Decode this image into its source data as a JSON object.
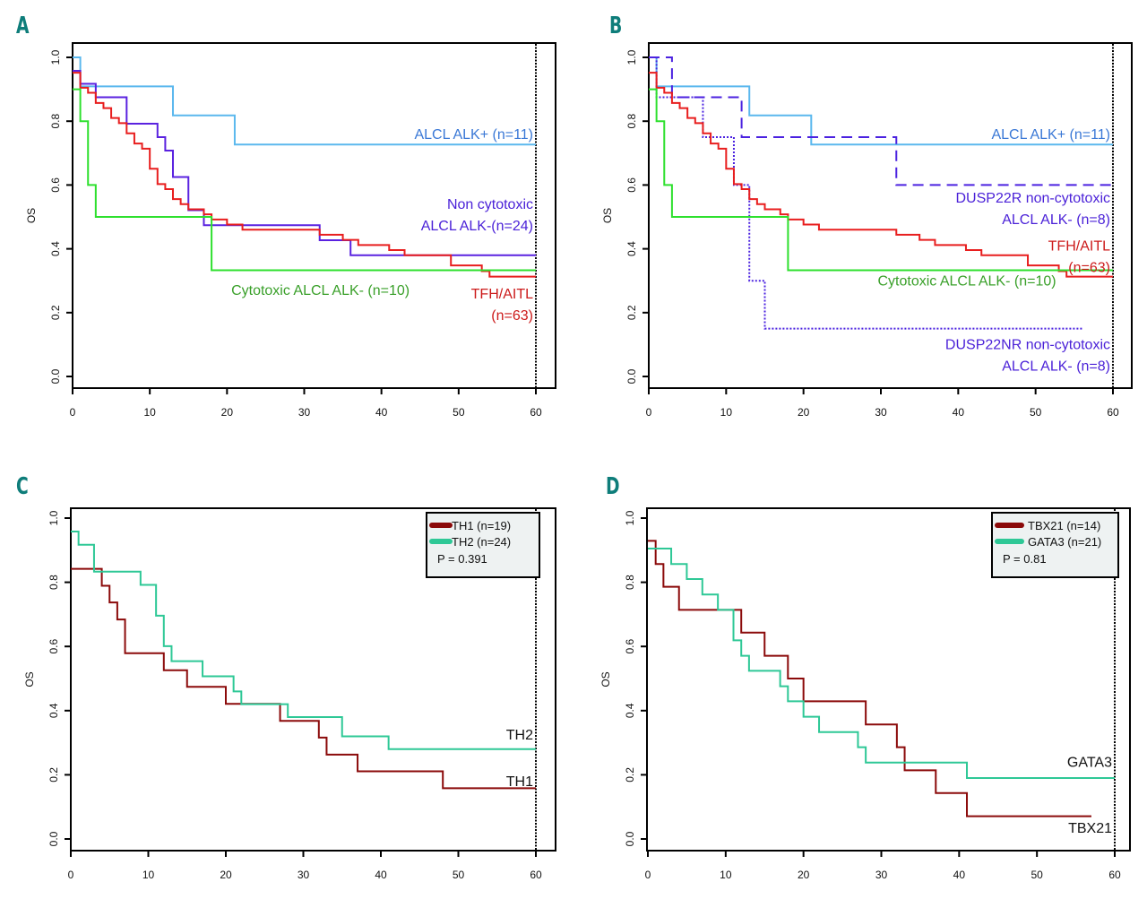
{
  "chart_data": [
    {
      "id": "A",
      "type": "line",
      "panel_label": "A",
      "xlabel": "",
      "ylabel": "OS",
      "xlim": [
        0,
        60
      ],
      "ylim": [
        0,
        1
      ],
      "xticks": [
        "0",
        "10",
        "20",
        "30",
        "40",
        "50",
        "60"
      ],
      "yticks": [
        "0.0",
        "0.2",
        "0.4",
        "0.6",
        "0.8",
        "1.0"
      ],
      "censor_line_x": 60,
      "legend": null,
      "series": [
        {
          "name": "ALCL ALK+ (n=11)",
          "color": "#5bb8ee",
          "style": "solid",
          "x": [
            0,
            1,
            13,
            21,
            60
          ],
          "y": [
            1.0,
            0.909,
            0.818,
            0.727,
            0.727
          ]
        },
        {
          "name": "Non cytotoxic ALCL ALK-(n=24)",
          "color": "#5a22e0",
          "style": "solid",
          "x": [
            0,
            1,
            3,
            7,
            11,
            12,
            13,
            15,
            17,
            32,
            36,
            60
          ],
          "y": [
            0.958,
            0.917,
            0.875,
            0.792,
            0.75,
            0.708,
            0.625,
            0.521,
            0.474,
            0.427,
            0.38,
            0.38
          ]
        },
        {
          "name": "TFH/AITL (n=63)",
          "color": "#e81e1e",
          "style": "solid",
          "x": [
            0,
            1,
            2,
            3,
            4,
            5,
            6,
            7,
            8,
            9,
            10,
            11,
            12,
            13,
            14,
            15,
            17,
            18,
            20,
            22,
            32,
            35,
            37,
            41,
            43,
            49,
            53,
            54,
            60
          ],
          "y": [
            0.952,
            0.905,
            0.889,
            0.857,
            0.841,
            0.81,
            0.794,
            0.762,
            0.73,
            0.714,
            0.651,
            0.603,
            0.587,
            0.556,
            0.54,
            0.524,
            0.508,
            0.492,
            0.476,
            0.46,
            0.444,
            0.428,
            0.412,
            0.396,
            0.38,
            0.348,
            0.33,
            0.313,
            0.313
          ]
        },
        {
          "name": "Cytotoxic ALCL ALK- (n=10)",
          "color": "#2ee02e",
          "style": "solid",
          "x": [
            0,
            1,
            2,
            3,
            18,
            60
          ],
          "y": [
            0.9,
            0.8,
            0.6,
            0.5,
            0.333,
            0.333
          ]
        }
      ],
      "annotations": [
        {
          "lines": [
            "ALCL ALK+ (n=11)"
          ],
          "color": "#3a78d6",
          "x": 60,
          "y": 0.745
        },
        {
          "lines": [
            "Non cytotoxic",
            "ALCL ALK-(n=24)"
          ],
          "color": "#4b22d8",
          "x": 60,
          "y": 0.525
        },
        {
          "lines": [
            "Cytotoxic ALCL ALK- (n=10)"
          ],
          "color": "#3aa02a",
          "x": 44,
          "y": 0.255
        },
        {
          "lines": [
            "TFH/AITL",
            "(n=63)"
          ],
          "color": "#cc1a1a",
          "x": 60,
          "y": 0.245
        }
      ]
    },
    {
      "id": "B",
      "type": "line",
      "panel_label": "B",
      "xlabel": "",
      "ylabel": "OS",
      "xlim": [
        0,
        60
      ],
      "ylim": [
        0,
        1
      ],
      "xticks": [
        "0",
        "10",
        "20",
        "30",
        "40",
        "50",
        "60"
      ],
      "yticks": [
        "0.0",
        "0.2",
        "0.4",
        "0.6",
        "0.8",
        "1.0"
      ],
      "censor_line_x": 60,
      "legend": null,
      "series": [
        {
          "name": "ALCL ALK+ (n=11)",
          "color": "#5bb8ee",
          "style": "solid",
          "x": [
            0,
            1,
            13,
            21,
            60
          ],
          "y": [
            1.0,
            0.909,
            0.818,
            0.727,
            0.727
          ]
        },
        {
          "name": "DUSP22R non-cytotoxic ALCL ALK- (n=8)",
          "color": "#4b22e0",
          "style": "dashed",
          "x": [
            0,
            3,
            12,
            32,
            60
          ],
          "y": [
            1.0,
            0.875,
            0.75,
            0.6,
            0.6
          ]
        },
        {
          "name": "DUSP22NR non-cytotoxic ALCL ALK- (n=8)",
          "color": "#4b22e0",
          "style": "dotted",
          "x": [
            0,
            1,
            7,
            11,
            13,
            15,
            56
          ],
          "y": [
            1.0,
            0.875,
            0.75,
            0.6,
            0.3,
            0.15,
            0.15
          ]
        },
        {
          "name": "TFH/AITL (n=63)",
          "color": "#e81e1e",
          "style": "solid",
          "x": [
            0,
            1,
            2,
            3,
            4,
            5,
            6,
            7,
            8,
            9,
            10,
            11,
            12,
            13,
            14,
            15,
            17,
            18,
            20,
            22,
            32,
            35,
            37,
            41,
            43,
            49,
            53,
            54,
            60
          ],
          "y": [
            0.952,
            0.905,
            0.889,
            0.857,
            0.841,
            0.81,
            0.794,
            0.762,
            0.73,
            0.714,
            0.651,
            0.603,
            0.587,
            0.556,
            0.54,
            0.524,
            0.508,
            0.492,
            0.476,
            0.46,
            0.444,
            0.428,
            0.412,
            0.396,
            0.38,
            0.348,
            0.33,
            0.313,
            0.313
          ]
        },
        {
          "name": "Cytotoxic ALCL ALK- (n=10)",
          "color": "#2ee02e",
          "style": "solid",
          "x": [
            0,
            1,
            2,
            3,
            18,
            60
          ],
          "y": [
            0.9,
            0.8,
            0.6,
            0.5,
            0.333,
            0.333
          ]
        }
      ],
      "annotations": [
        {
          "lines": [
            "ALCL ALK+ (n=11)"
          ],
          "color": "#3a78d6",
          "x": 60,
          "y": 0.745
        },
        {
          "lines": [
            "DUSP22R non-cytotoxic",
            "ALCL ALK- (n=8)"
          ],
          "color": "#4b22d8",
          "x": 60,
          "y": 0.545
        },
        {
          "lines": [
            "TFH/AITL",
            "(n=63)"
          ],
          "color": "#cc1a1a",
          "x": 60,
          "y": 0.395
        },
        {
          "lines": [
            "Cytotoxic  ALCL ALK- (n=10)"
          ],
          "color": "#3aa02a",
          "x": 53,
          "y": 0.285
        },
        {
          "lines": [
            "DUSP22NR non-cytotoxic",
            "ALCL ALK- (n=8)"
          ],
          "color": "#4b22d8",
          "x": 60,
          "y": 0.085
        }
      ]
    },
    {
      "id": "C",
      "type": "line",
      "panel_label": "C",
      "xlabel": "",
      "ylabel": "OS",
      "xlim": [
        0,
        60
      ],
      "ylim": [
        0,
        1
      ],
      "xticks": [
        "0",
        "10",
        "20",
        "30",
        "40",
        "50",
        "60"
      ],
      "yticks": [
        "0.0",
        "0.2",
        "0.4",
        "0.6",
        "0.8",
        "1.0"
      ],
      "censor_line_x": 60,
      "legend": {
        "position": "top-right",
        "entries": [
          {
            "label": "TH1 (n=19)",
            "color": "#8b0a0a"
          },
          {
            "label": "TH2 (n=24)",
            "color": "#2ec896"
          }
        ],
        "pvalue": "P = 0.391"
      },
      "series": [
        {
          "name": "TH1 (n=19)",
          "color": "#8b0a0a",
          "style": "solid",
          "x": [
            0,
            4,
            5,
            6,
            7,
            12,
            15,
            20,
            27,
            32,
            33,
            37,
            48,
            60
          ],
          "y": [
            0.842,
            0.789,
            0.737,
            0.684,
            0.579,
            0.526,
            0.474,
            0.421,
            0.368,
            0.316,
            0.263,
            0.211,
            0.158,
            0.158
          ]
        },
        {
          "name": "TH2 (n=24)",
          "color": "#2ec896",
          "style": "solid",
          "x": [
            0,
            1,
            3,
            9,
            11,
            12,
            13,
            17,
            21,
            22,
            28,
            35,
            41,
            60
          ],
          "y": [
            0.958,
            0.917,
            0.833,
            0.792,
            0.696,
            0.601,
            0.554,
            0.507,
            0.46,
            0.42,
            0.38,
            0.32,
            0.28,
            0.28
          ]
        }
      ],
      "annotations": [
        {
          "lines": [
            "TH2"
          ],
          "color": "#111111",
          "x": 60,
          "y": 0.31
        },
        {
          "lines": [
            "TH1"
          ],
          "color": "#111111",
          "x": 60,
          "y": 0.165
        }
      ]
    },
    {
      "id": "D",
      "type": "line",
      "panel_label": "D",
      "xlabel": "",
      "ylabel": "OS",
      "xlim": [
        0,
        60
      ],
      "ylim": [
        0,
        1
      ],
      "xticks": [
        "0",
        "10",
        "20",
        "30",
        "40",
        "50",
        "60"
      ],
      "yticks": [
        "0.0",
        "0.2",
        "0.4",
        "0.6",
        "0.8",
        "1.0"
      ],
      "censor_line_x": 60,
      "legend": {
        "position": "top-right",
        "entries": [
          {
            "label": "TBX21 (n=14)",
            "color": "#8b0a0a"
          },
          {
            "label": "GATA3 (n=21)",
            "color": "#2ec896"
          }
        ],
        "pvalue": "P = 0.81"
      },
      "series": [
        {
          "name": "TBX21 (n=14)",
          "color": "#8b0a0a",
          "style": "solid",
          "x": [
            0,
            1,
            2,
            4,
            12,
            15,
            18,
            20,
            28,
            32,
            33,
            37,
            41,
            57
          ],
          "y": [
            0.929,
            0.857,
            0.786,
            0.714,
            0.643,
            0.571,
            0.5,
            0.429,
            0.357,
            0.286,
            0.214,
            0.143,
            0.071,
            0.071
          ]
        },
        {
          "name": "GATA3 (n=21)",
          "color": "#2ec896",
          "style": "solid",
          "x": [
            0,
            3,
            5,
            7,
            9,
            11,
            12,
            13,
            17,
            18,
            20,
            22,
            27,
            28,
            41,
            60
          ],
          "y": [
            0.905,
            0.857,
            0.81,
            0.762,
            0.714,
            0.619,
            0.571,
            0.524,
            0.476,
            0.429,
            0.381,
            0.333,
            0.286,
            0.238,
            0.19,
            0.19
          ]
        }
      ],
      "annotations": [
        {
          "lines": [
            "GATA3"
          ],
          "color": "#111111",
          "x": 60,
          "y": 0.225
        },
        {
          "lines": [
            "TBX21"
          ],
          "color": "#111111",
          "x": 60,
          "y": 0.02
        }
      ]
    }
  ]
}
